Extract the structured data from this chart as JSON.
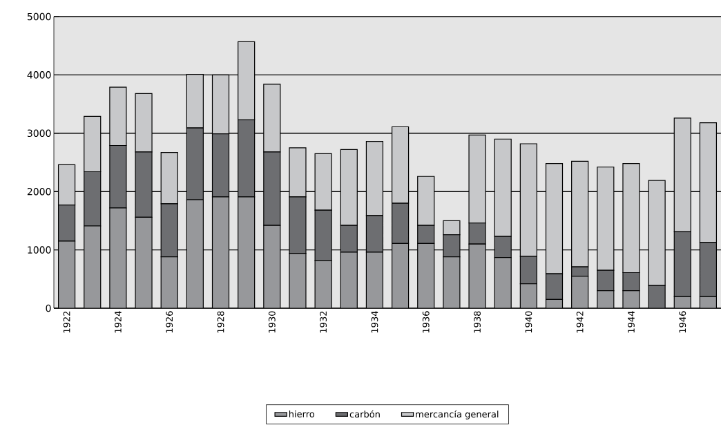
{
  "chart_data": {
    "type": "bar",
    "stacked": true,
    "categories": [
      "1922",
      null,
      "1924",
      null,
      "1926",
      null,
      "1928",
      null,
      "1930",
      null,
      "1932",
      null,
      "1934",
      null,
      "1936",
      null,
      "1938",
      null,
      "1940",
      null,
      "1942",
      null,
      "1944",
      null,
      "1946",
      null
    ],
    "series": [
      {
        "name": "hierro",
        "color": "#97989b",
        "values": [
          1150,
          1410,
          1720,
          1560,
          880,
          1860,
          1910,
          1910,
          1420,
          940,
          820,
          960,
          960,
          1110,
          1110,
          880,
          1100,
          870,
          420,
          150,
          550,
          300,
          300,
          0,
          200,
          200
        ]
      },
      {
        "name": "carbón",
        "color": "#6d6e71",
        "values": [
          620,
          930,
          1070,
          1120,
          910,
          1230,
          1080,
          1320,
          1260,
          970,
          860,
          460,
          630,
          690,
          310,
          380,
          360,
          360,
          470,
          440,
          160,
          350,
          310,
          390,
          1110,
          930
        ]
      },
      {
        "name": "mercancía general",
        "color": "#c7c8ca",
        "values": [
          690,
          950,
          1000,
          1000,
          880,
          920,
          1010,
          1340,
          1160,
          840,
          970,
          1300,
          1270,
          1310,
          840,
          240,
          1510,
          1670,
          1930,
          1890,
          1810,
          1770,
          1870,
          1800,
          1950,
          2050
        ]
      }
    ],
    "ylim": [
      0,
      5000
    ],
    "yticks": [
      0,
      1000,
      2000,
      3000,
      4000,
      5000
    ],
    "grid": "y",
    "legend": "bottom"
  }
}
